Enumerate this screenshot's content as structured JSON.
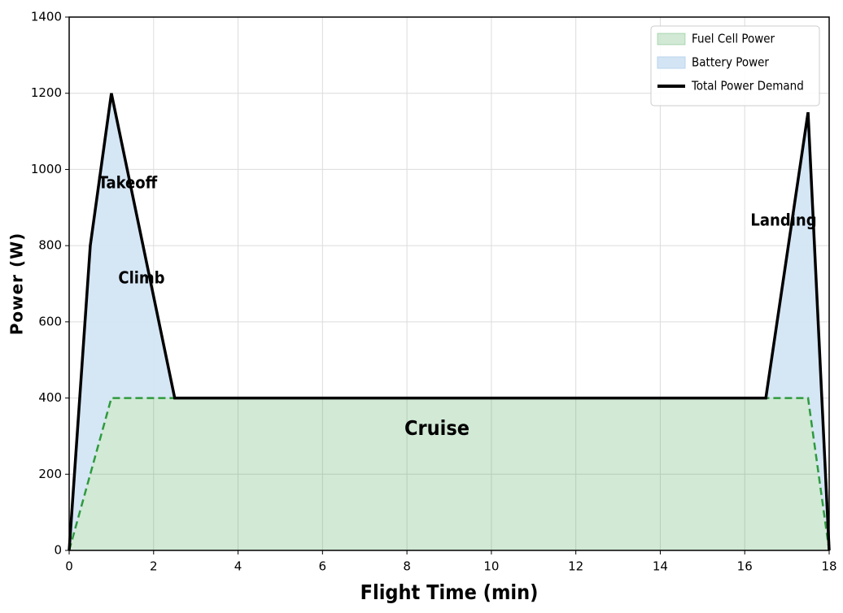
{
  "chart_data": {
    "type": "area",
    "x": [
      0,
      0.5,
      1,
      2.5,
      16.5,
      17.5,
      18
    ],
    "series": [
      {
        "name": "Fuel Cell Power",
        "color": "#2e9a3e",
        "values": [
          0,
          200,
          400,
          400,
          400,
          400,
          0
        ]
      },
      {
        "name": "Battery Power",
        "color": "#d3e5f4",
        "values": [
          0,
          600,
          800,
          0,
          0,
          750,
          0
        ]
      },
      {
        "name": "Total Power Demand",
        "color": "#000000",
        "values": [
          0,
          800,
          1200,
          400,
          400,
          1150,
          0
        ]
      }
    ],
    "annotations": [
      "Takeoff",
      "Climb",
      "Cruise",
      "Landing"
    ],
    "xlabel": "Flight Time (min)",
    "ylabel": "Power (W)",
    "xlim": [
      0,
      18
    ],
    "ylim": [
      0,
      1400
    ],
    "xticks": [
      0,
      2,
      4,
      6,
      8,
      10,
      12,
      14,
      16,
      18
    ],
    "yticks": [
      0,
      200,
      400,
      600,
      800,
      1000,
      1200,
      1400
    ],
    "grid": true,
    "legend": "upper right"
  }
}
